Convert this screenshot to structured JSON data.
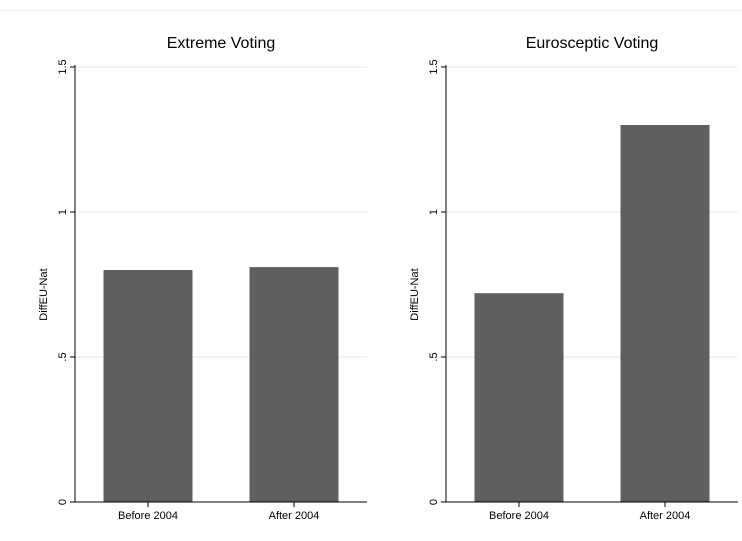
{
  "chart_data": [
    {
      "type": "bar",
      "title": "Extreme Voting",
      "ylabel": "DiffEU-Nat",
      "xlabel": "",
      "categories": [
        "Before 2004",
        "After 2004"
      ],
      "values": [
        0.8,
        0.81
      ],
      "ylim": [
        0,
        1.5
      ],
      "yticks": [
        0,
        0.5,
        1,
        1.5
      ],
      "ytick_labels": [
        "0",
        ".5",
        "1",
        "1.5"
      ],
      "grid": true,
      "bar_color": "#5f5f5f",
      "grid_color": "#e8e8e8"
    },
    {
      "type": "bar",
      "title": "Eurosceptic Voting",
      "ylabel": "DiffEU-Nat",
      "xlabel": "",
      "categories": [
        "Before 2004",
        "After 2004"
      ],
      "values": [
        0.72,
        1.3
      ],
      "ylim": [
        0,
        1.5
      ],
      "yticks": [
        0,
        0.5,
        1,
        1.5
      ],
      "ytick_labels": [
        "0",
        ".5",
        "1",
        "1.5"
      ],
      "grid": true,
      "bar_color": "#5f5f5f",
      "grid_color": "#e8e8e8"
    }
  ]
}
